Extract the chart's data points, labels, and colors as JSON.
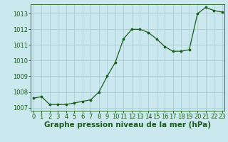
{
  "x": [
    0,
    1,
    2,
    3,
    4,
    5,
    6,
    7,
    8,
    9,
    10,
    11,
    12,
    13,
    14,
    15,
    16,
    17,
    18,
    19,
    20,
    21,
    22,
    23
  ],
  "y": [
    1007.6,
    1007.7,
    1007.2,
    1007.2,
    1007.2,
    1007.3,
    1007.4,
    1007.5,
    1008.0,
    1009.0,
    1009.9,
    1011.4,
    1012.0,
    1012.0,
    1011.8,
    1011.4,
    1010.9,
    1010.6,
    1010.6,
    1010.7,
    1013.0,
    1013.4,
    1013.2,
    1013.1
  ],
  "ylim": [
    1006.8,
    1013.6
  ],
  "yticks": [
    1007,
    1008,
    1009,
    1010,
    1011,
    1012,
    1013
  ],
  "xticks": [
    0,
    1,
    2,
    3,
    4,
    5,
    6,
    7,
    8,
    9,
    10,
    11,
    12,
    13,
    14,
    15,
    16,
    17,
    18,
    19,
    20,
    21,
    22,
    23
  ],
  "line_color": "#1a5c1a",
  "marker": "o",
  "marker_size": 2.2,
  "bg_color": "#cce8ef",
  "grid_color": "#aacdd6",
  "xlabel": "Graphe pression niveau de la mer (hPa)",
  "xlabel_color": "#1a5c1a",
  "tick_color": "#1a5c1a",
  "label_fontsize": 7.5,
  "tick_fontsize": 6.0,
  "xlim_left": -0.3,
  "xlim_right": 23.3
}
